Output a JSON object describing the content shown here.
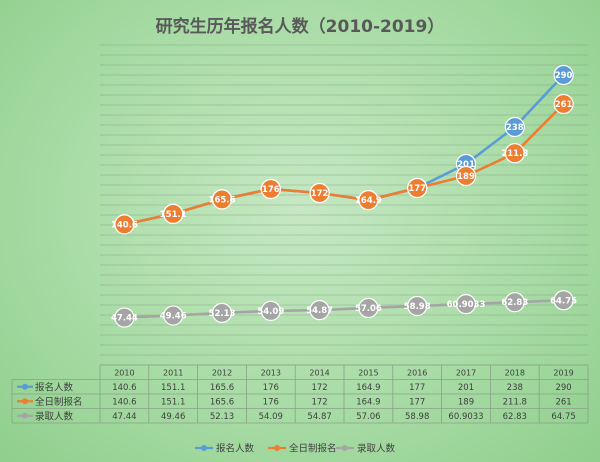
{
  "chart_data": {
    "type": "line",
    "title": "研究生历年报名人数（2010-2019）",
    "categories": [
      "2010",
      "2011",
      "2012",
      "2013",
      "2014",
      "2015",
      "2016",
      "2017",
      "2018",
      "2019"
    ],
    "ylim": [
      0,
      320
    ],
    "grid": true,
    "legend_position": "bottom",
    "series": [
      {
        "name": "报名人数",
        "color": "#5b9bd5",
        "values": [
          140.6,
          151.1,
          165.6,
          176,
          172,
          164.9,
          177,
          201,
          238,
          290
        ],
        "labels": [
          "140.6",
          "151.1",
          "165.6",
          "176",
          "172",
          "164.9",
          "177",
          "201",
          "238",
          "290"
        ]
      },
      {
        "name": "全日制报名",
        "color": "#ed7d31",
        "values": [
          140.6,
          151.1,
          165.6,
          176,
          172,
          164.9,
          177,
          189,
          211.8,
          261
        ],
        "labels": [
          "140.6",
          "151.1",
          "165.6",
          "176",
          "172",
          "164.9",
          "177",
          "189",
          "211.8",
          "261"
        ]
      },
      {
        "name": "录取人数",
        "color": "#a5a5a5",
        "values": [
          47.44,
          49.46,
          52.13,
          54.09,
          54.87,
          57.06,
          58.98,
          60.9033,
          62.83,
          64.75
        ],
        "labels": [
          "47.44",
          "49.46",
          "52.13",
          "54.09",
          "54.87",
          "57.06",
          "58.98",
          "60.9033",
          "62.83",
          "64.75"
        ]
      }
    ]
  }
}
